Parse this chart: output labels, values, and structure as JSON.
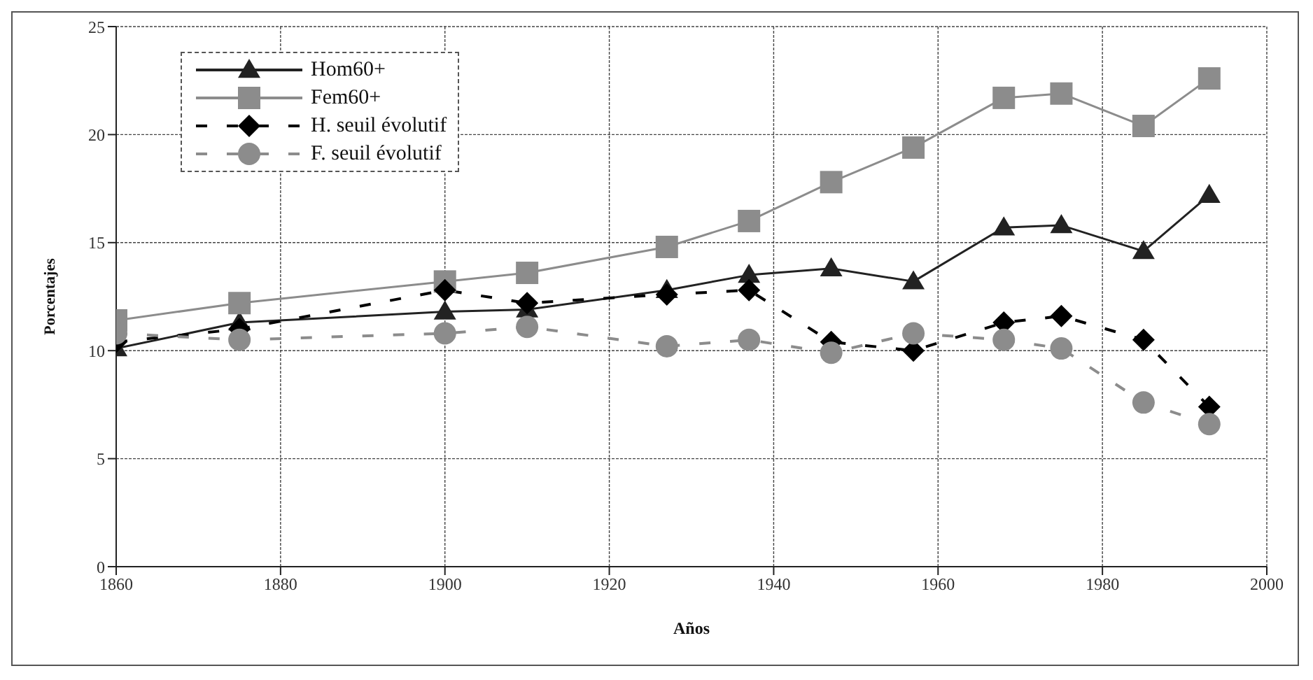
{
  "chart_data": {
    "type": "line",
    "xlabel": "Años",
    "ylabel": "Porcentajes",
    "x": [
      1860,
      1875,
      1900,
      1910,
      1927,
      1937,
      1947,
      1957,
      1968,
      1975,
      1985,
      1993
    ],
    "series": [
      {
        "name": "Hom60+",
        "color": "#222222",
        "marker": "triangle",
        "line_style": "solid",
        "values": [
          10.1,
          11.3,
          11.8,
          11.9,
          12.8,
          13.5,
          13.8,
          13.2,
          15.7,
          15.8,
          14.6,
          17.2
        ]
      },
      {
        "name": "Fem60+",
        "color": "#8c8c8c",
        "marker": "square",
        "line_style": "solid",
        "values": [
          11.4,
          12.2,
          13.2,
          13.6,
          14.8,
          16.0,
          17.8,
          19.4,
          21.7,
          21.9,
          20.4,
          22.6
        ]
      },
      {
        "name": "H. seuil évolutif",
        "color": "#000000",
        "marker": "diamond",
        "line_style": "dashed",
        "values": [
          10.4,
          11.0,
          12.8,
          12.2,
          12.6,
          12.8,
          10.4,
          10.0,
          11.3,
          11.6,
          10.5,
          7.4
        ]
      },
      {
        "name": "F. seuil évolutif",
        "color": "#8c8c8c",
        "marker": "circle",
        "line_style": "dashed",
        "values": [
          10.8,
          10.5,
          10.8,
          11.1,
          10.2,
          10.5,
          9.9,
          10.8,
          10.5,
          10.1,
          7.6,
          6.6
        ]
      }
    ],
    "xlim": [
      1860,
      2000
    ],
    "xticks": [
      1860,
      1880,
      1900,
      1920,
      1940,
      1960,
      1980,
      2000
    ],
    "ylim": [
      0,
      25
    ],
    "yticks": [
      0,
      5,
      10,
      15,
      20,
      25
    ],
    "grid": true,
    "legend": "top left"
  }
}
